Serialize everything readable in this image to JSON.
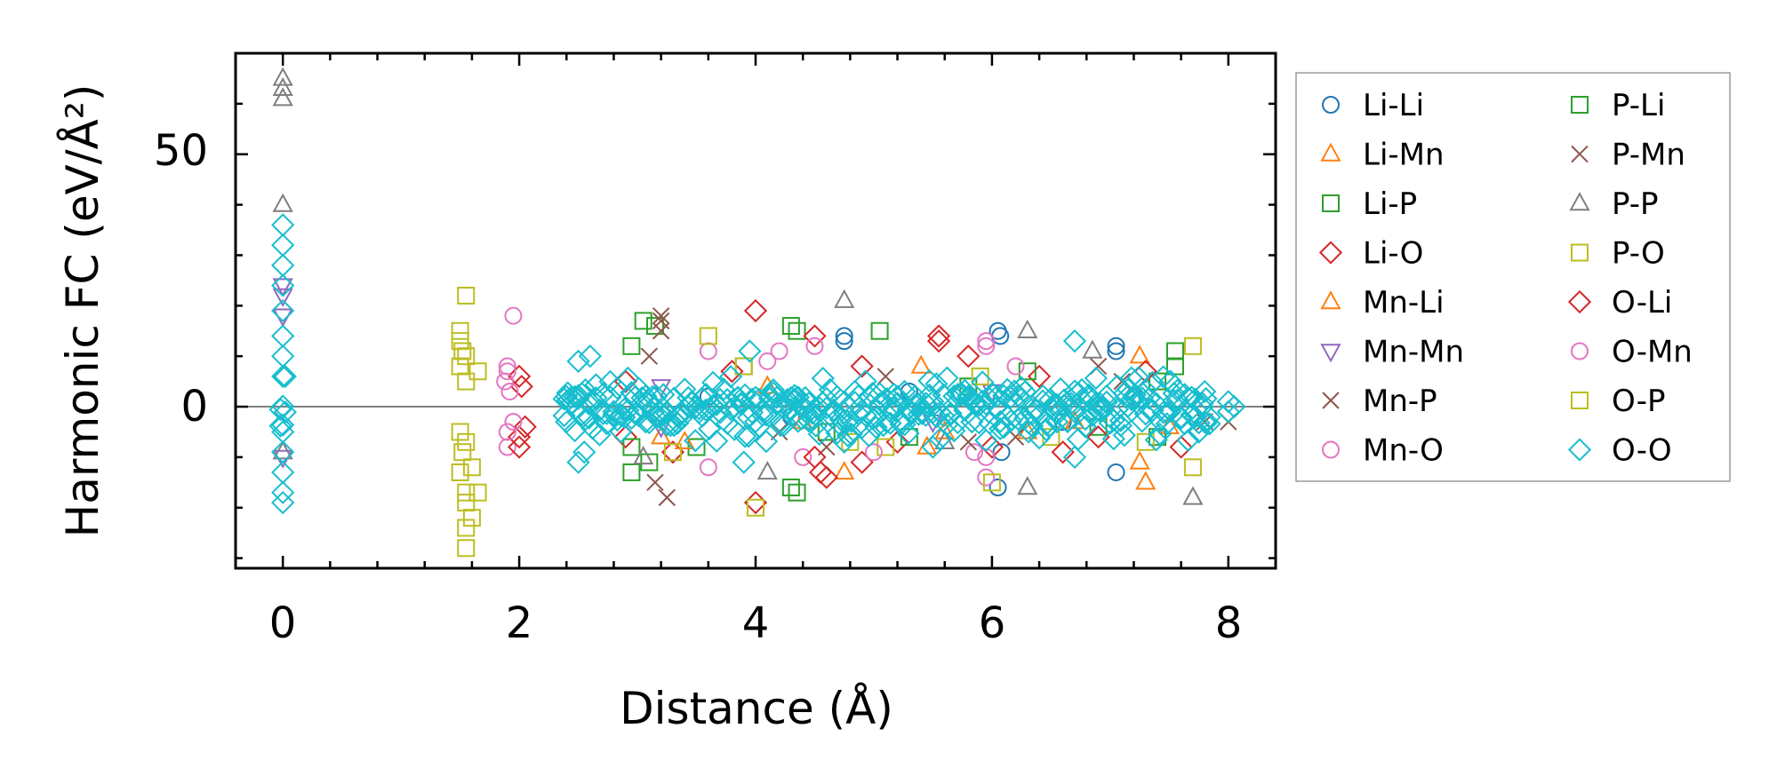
{
  "chart_data": {
    "type": "scatter",
    "title": "",
    "xlabel": "Distance (Å)",
    "ylabel": "Harmonic FC (eV/Å²)",
    "xlim": [
      -0.4,
      8.4
    ],
    "ylim": [
      -32,
      70
    ],
    "x_ticks": [
      0,
      2,
      4,
      6,
      8
    ],
    "x_tick_labels": [
      "0",
      "2",
      "4",
      "6",
      "8"
    ],
    "y_ticks": [
      0,
      50
    ],
    "y_tick_labels": [
      "0",
      "50"
    ],
    "zero_line": 0,
    "grid": false,
    "legend_position": "outside-right",
    "series": [
      {
        "name": "Li-Li",
        "marker": "circle",
        "color": "#1f77b4",
        "points": [
          [
            4.75,
            14
          ],
          [
            4.75,
            13
          ],
          [
            6.05,
            15
          ],
          [
            6.07,
            14
          ],
          [
            7.05,
            12
          ],
          [
            7.05,
            11
          ],
          [
            7.05,
            -13
          ],
          [
            6.05,
            -16
          ],
          [
            6.08,
            -9
          ],
          [
            3.6,
            2
          ],
          [
            4.3,
            -2
          ],
          [
            5.3,
            3
          ],
          [
            6.6,
            -3
          ],
          [
            7.2,
            2
          ]
        ]
      },
      {
        "name": "Li-Mn",
        "marker": "triangle-up",
        "color": "#ff7f0e",
        "points": [
          [
            4.75,
            -13
          ],
          [
            5.45,
            -8
          ],
          [
            7.3,
            -15
          ],
          [
            7.25,
            -11
          ],
          [
            7.25,
            10
          ],
          [
            5.4,
            8
          ],
          [
            3.2,
            -6
          ],
          [
            4.1,
            4
          ],
          [
            6.3,
            -5
          ]
        ]
      },
      {
        "name": "Li-P",
        "marker": "square",
        "color": "#2ca02c",
        "points": [
          [
            3.05,
            17
          ],
          [
            3.15,
            16
          ],
          [
            2.95,
            12
          ],
          [
            4.3,
            16
          ],
          [
            4.35,
            15
          ],
          [
            5.05,
            15
          ],
          [
            2.95,
            -13
          ],
          [
            3.1,
            -11
          ],
          [
            4.3,
            -16
          ],
          [
            4.35,
            -17
          ],
          [
            7.55,
            11
          ],
          [
            7.55,
            8
          ],
          [
            3.5,
            -8
          ],
          [
            4.6,
            -5
          ],
          [
            5.8,
            4
          ],
          [
            6.9,
            -4
          ],
          [
            7.4,
            5
          ]
        ]
      },
      {
        "name": "Li-O",
        "marker": "diamond",
        "color": "#d62728",
        "points": [
          [
            4.0,
            19
          ],
          [
            4.0,
            -19
          ],
          [
            4.5,
            14
          ],
          [
            4.55,
            -13
          ],
          [
            5.55,
            14
          ],
          [
            5.55,
            13
          ],
          [
            4.9,
            8
          ],
          [
            4.9,
            -11
          ],
          [
            2.9,
            5
          ],
          [
            2.9,
            -6
          ],
          [
            3.3,
            -9
          ],
          [
            3.8,
            7
          ],
          [
            5.2,
            -7
          ],
          [
            6.0,
            -8
          ],
          [
            6.4,
            6
          ],
          [
            6.9,
            -6
          ],
          [
            7.3,
            7
          ],
          [
            7.6,
            -8
          ],
          [
            4.6,
            -14
          ]
        ]
      },
      {
        "name": "Mn-Li",
        "marker": "triangle-up",
        "color": "#ff7f0e",
        "points": [
          [
            3.4,
            -7
          ],
          [
            4.4,
            -3
          ],
          [
            5.6,
            -5
          ],
          [
            6.7,
            -3
          ],
          [
            7.5,
            -4
          ]
        ]
      },
      {
        "name": "Mn-Mn",
        "marker": "triangle-down",
        "color": "#9467bd",
        "points": [
          [
            0,
            24
          ],
          [
            0,
            22
          ],
          [
            0,
            18
          ],
          [
            0,
            -10
          ],
          [
            3.2,
            -4
          ],
          [
            3.2,
            4
          ],
          [
            5.5,
            -3
          ],
          [
            6.0,
            3
          ]
        ]
      },
      {
        "name": "Mn-P",
        "marker": "cross",
        "color": "#8c564b",
        "points": [
          [
            3.2,
            18
          ],
          [
            3.2,
            17
          ],
          [
            3.2,
            15
          ],
          [
            3.15,
            -15
          ],
          [
            3.25,
            -18
          ],
          [
            4.2,
            -5
          ],
          [
            5.1,
            6
          ],
          [
            6.2,
            -6
          ],
          [
            7.1,
            5
          ],
          [
            7.8,
            -3
          ],
          [
            8.0,
            -3
          ]
        ]
      },
      {
        "name": "Mn-O",
        "marker": "circle",
        "color": "#e377c2",
        "points": [
          [
            1.95,
            18
          ],
          [
            1.9,
            8
          ],
          [
            1.9,
            -8
          ],
          [
            3.6,
            11
          ],
          [
            4.2,
            11
          ],
          [
            4.5,
            12
          ],
          [
            3.6,
            -12
          ],
          [
            4.4,
            -10
          ],
          [
            5.95,
            13
          ],
          [
            5.95,
            12
          ],
          [
            5.95,
            -14
          ],
          [
            5.95,
            -10
          ],
          [
            5.85,
            -9
          ]
        ]
      },
      {
        "name": "P-Li",
        "marker": "square",
        "color": "#2ca02c",
        "points": [
          [
            2.95,
            -8
          ],
          [
            3.9,
            8
          ],
          [
            5.3,
            -6
          ],
          [
            6.3,
            7
          ],
          [
            7.4,
            -6
          ]
        ]
      },
      {
        "name": "P-Mn",
        "marker": "cross",
        "color": "#8c564b",
        "points": [
          [
            3.1,
            10
          ],
          [
            4.6,
            -8
          ],
          [
            5.8,
            -7
          ],
          [
            6.9,
            8
          ]
        ]
      },
      {
        "name": "P-P",
        "marker": "triangle-up",
        "color": "#7f7f7f",
        "points": [
          [
            0,
            65
          ],
          [
            0,
            63
          ],
          [
            0,
            61
          ],
          [
            0,
            40
          ],
          [
            0,
            -9
          ],
          [
            4.75,
            21
          ],
          [
            6.3,
            15
          ],
          [
            6.3,
            -16
          ],
          [
            7.7,
            -18
          ],
          [
            3.05,
            -10
          ],
          [
            4.1,
            -13
          ],
          [
            5.6,
            -7
          ],
          [
            6.85,
            11
          ]
        ]
      },
      {
        "name": "P-O",
        "marker": "square",
        "color": "#bcbd22",
        "points": [
          [
            1.55,
            22
          ],
          [
            1.55,
            10
          ],
          [
            1.55,
            -7
          ],
          [
            1.55,
            -17
          ],
          [
            1.55,
            -24
          ],
          [
            1.55,
            -28
          ],
          [
            3.6,
            14
          ],
          [
            4.0,
            -20
          ],
          [
            6.0,
            -15
          ],
          [
            7.7,
            12
          ],
          [
            7.7,
            -12
          ],
          [
            3.9,
            8
          ],
          [
            5.1,
            -8
          ],
          [
            6.5,
            -6
          ]
        ]
      },
      {
        "name": "O-Li",
        "marker": "diamond",
        "color": "#d62728",
        "points": [
          [
            2.0,
            6
          ],
          [
            2.0,
            -6
          ],
          [
            2.02,
            4
          ],
          [
            2.05,
            -4
          ],
          [
            2.0,
            -8
          ],
          [
            4.5,
            -10
          ],
          [
            5.8,
            10
          ],
          [
            6.6,
            -9
          ]
        ]
      },
      {
        "name": "O-Mn",
        "marker": "circle",
        "color": "#e377c2",
        "points": [
          [
            1.88,
            5
          ],
          [
            1.9,
            -5
          ],
          [
            1.92,
            3
          ],
          [
            1.95,
            -3
          ],
          [
            1.9,
            7
          ],
          [
            4.1,
            9
          ],
          [
            5.0,
            -9
          ],
          [
            6.2,
            8
          ]
        ]
      },
      {
        "name": "O-P",
        "marker": "square",
        "color": "#bcbd22",
        "points": [
          [
            1.5,
            15
          ],
          [
            1.5,
            13
          ],
          [
            1.52,
            11
          ],
          [
            1.5,
            8
          ],
          [
            1.55,
            5
          ],
          [
            1.5,
            -5
          ],
          [
            1.52,
            -9
          ],
          [
            1.5,
            -13
          ],
          [
            1.55,
            -19
          ],
          [
            1.6,
            -22
          ],
          [
            1.65,
            -17
          ],
          [
            1.6,
            -12
          ],
          [
            1.65,
            7
          ],
          [
            3.3,
            -9
          ],
          [
            4.8,
            -7
          ],
          [
            5.9,
            6
          ],
          [
            7.3,
            -7
          ]
        ]
      },
      {
        "name": "O-O",
        "marker": "diamond",
        "color": "#17becf",
        "points": [
          [
            0,
            36
          ],
          [
            0,
            32
          ],
          [
            0,
            28
          ],
          [
            0,
            24
          ],
          [
            0,
            19
          ],
          [
            0,
            14
          ],
          [
            0,
            10
          ],
          [
            0,
            6
          ],
          [
            0,
            -5
          ],
          [
            0,
            -9
          ],
          [
            0,
            -13
          ],
          [
            0,
            -17
          ],
          [
            0,
            -19
          ],
          [
            2.5,
            9
          ],
          [
            2.5,
            -11
          ],
          [
            2.6,
            10
          ],
          [
            2.55,
            -9
          ],
          [
            3.95,
            11
          ],
          [
            3.9,
            -11
          ],
          [
            4.75,
            -7
          ],
          [
            5.5,
            -8
          ],
          [
            6.7,
            13
          ],
          [
            6.7,
            -10
          ],
          [
            8.0,
            1
          ],
          [
            8.0,
            -1
          ],
          [
            8.05,
            0
          ],
          [
            2.4,
            2
          ],
          [
            2.4,
            -3
          ],
          [
            7.8,
            3
          ],
          [
            7.8,
            -3
          ]
        ]
      }
    ],
    "dense_bands": [
      {
        "series": "O-O",
        "x_start": 2.38,
        "x_end": 7.85,
        "y_min": -7,
        "y_max": 6,
        "x_step": 0.03
      },
      {
        "series": "O-O",
        "x_start": -0.02,
        "x_end": 0.02,
        "y_min": -5,
        "y_max": 8,
        "x_step": 0.02
      }
    ]
  }
}
